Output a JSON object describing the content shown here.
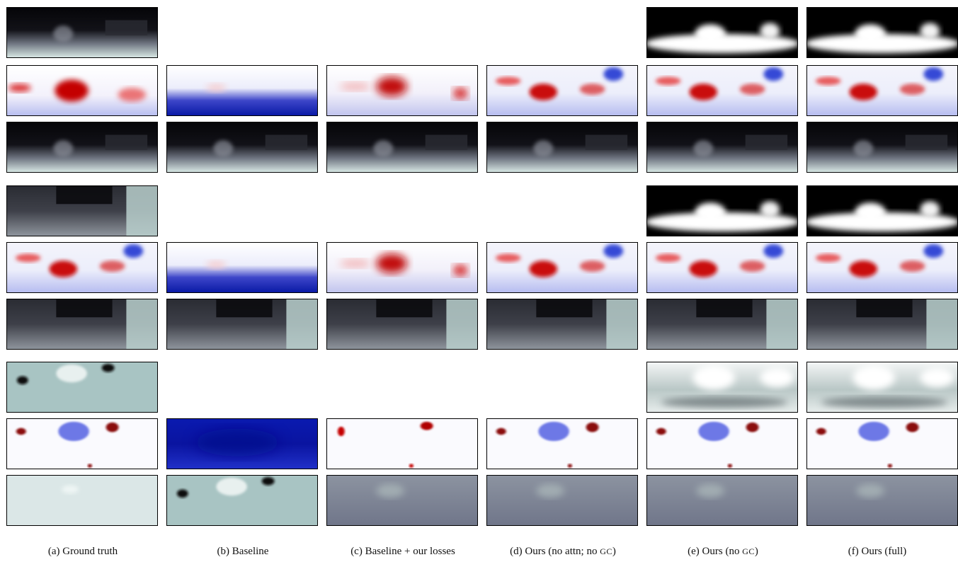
{
  "figure": {
    "columns": [
      {
        "id": "a",
        "label_prefix": "(a)",
        "label": "Ground truth"
      },
      {
        "id": "b",
        "label_prefix": "(b)",
        "label": "Baseline"
      },
      {
        "id": "c",
        "label_prefix": "(c)",
        "label": "Baseline + our losses"
      },
      {
        "id": "d",
        "label_prefix": "(d)",
        "label": "Ours (no attn; no ",
        "label_sc": "GC",
        "label_tail": ")"
      },
      {
        "id": "e",
        "label_prefix": "(e)",
        "label": "Ours (no ",
        "label_sc": "GC",
        "label_tail": ")"
      },
      {
        "id": "f",
        "label_prefix": "(f)",
        "label": "Ours (full)"
      }
    ],
    "rows": [
      {
        "group": 1,
        "kind": "depth",
        "cells": [
          "depth",
          "",
          "",
          "",
          "mask",
          "mask"
        ]
      },
      {
        "group": 1,
        "kind": "error",
        "cells": [
          "err_red",
          "err_blue",
          "err_red_soft",
          "err_mixed",
          "err_mixed",
          "err_mixed"
        ]
      },
      {
        "group": 1,
        "kind": "prediction",
        "cells": [
          "depth",
          "depth",
          "depth",
          "depth",
          "depth",
          "depth"
        ]
      },
      {
        "group": 2,
        "kind": "depth",
        "cells": [
          "depth_light",
          "",
          "",
          "",
          "mask",
          "mask"
        ]
      },
      {
        "group": 2,
        "kind": "error",
        "cells": [
          "err_mixed",
          "err_blue",
          "err_red_soft",
          "err_mixed",
          "err_mixed",
          "err_mixed"
        ]
      },
      {
        "group": 2,
        "kind": "prediction",
        "cells": [
          "depth_light",
          "depth_light",
          "depth_light",
          "depth_light",
          "depth_light",
          "depth_light"
        ]
      },
      {
        "group": 3,
        "kind": "depth",
        "cells": [
          "teal",
          "",
          "",
          "",
          "mask_noise",
          "mask_noise"
        ]
      },
      {
        "group": 3,
        "kind": "error",
        "cells": [
          "err_sparse",
          "err_blue_full",
          "err_sparse_red",
          "err_sparse",
          "err_sparse",
          "err_sparse"
        ]
      },
      {
        "group": 3,
        "kind": "prediction",
        "cells": [
          "teal_pale",
          "teal",
          "slate",
          "slate",
          "slate",
          "slate"
        ]
      }
    ]
  }
}
